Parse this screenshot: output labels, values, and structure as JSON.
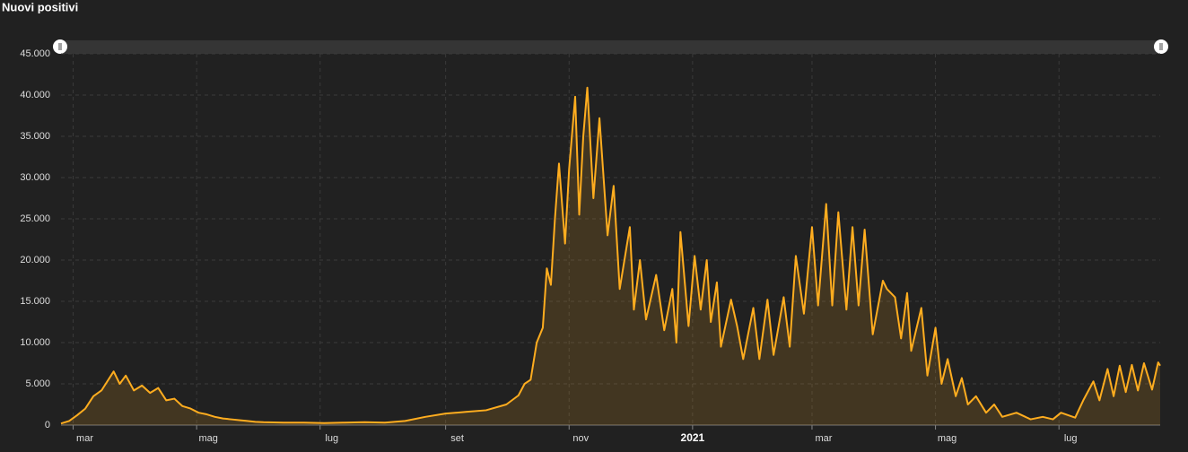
{
  "chart_data": {
    "type": "area",
    "title": "Nuovi positivi",
    "x": [
      0,
      4,
      8,
      12,
      16,
      20,
      26,
      29,
      32,
      36,
      40,
      44,
      48,
      52,
      56,
      60,
      64,
      68,
      72,
      76,
      80,
      84,
      88,
      92,
      96,
      100,
      110,
      120,
      130,
      140,
      150,
      160,
      170,
      180,
      190,
      200,
      210,
      220,
      226,
      229,
      232,
      235,
      238,
      240,
      242,
      244,
      246,
      249,
      251,
      254,
      256,
      258,
      260,
      263,
      266,
      270,
      273,
      276,
      281,
      283,
      286,
      289,
      294,
      298,
      302,
      304,
      306,
      310,
      313,
      316,
      319,
      321,
      324,
      326,
      331,
      334,
      337,
      342,
      345,
      349,
      352,
      357,
      360,
      363,
      367,
      371,
      374,
      378,
      381,
      384,
      388,
      391,
      394,
      397,
      401,
      406,
      408,
      412,
      415,
      418,
      420,
      425,
      428,
      432,
      435,
      438,
      442,
      445,
      448,
      452,
      457,
      461,
      465,
      472,
      479,
      485,
      490,
      494,
      501,
      505,
      510,
      513,
      517,
      520,
      523,
      526,
      529,
      532,
      535,
      539,
      542,
      543
    ],
    "values": [
      200,
      500,
      1200,
      2000,
      3500,
      4200,
      6500,
      5000,
      6000,
      4200,
      4800,
      3900,
      4500,
      3000,
      3200,
      2300,
      2000,
      1500,
      1300,
      1000,
      800,
      700,
      600,
      500,
      400,
      350,
      300,
      300,
      250,
      300,
      350,
      300,
      500,
      1000,
      1400,
      1600,
      1800,
      2500,
      3600,
      5000,
      5500,
      10000,
      11800,
      19000,
      17000,
      25000,
      31700,
      22000,
      31000,
      39800,
      25500,
      35000,
      40900,
      27500,
      37200,
      23000,
      29000,
      16500,
      24000,
      14000,
      20000,
      12800,
      18200,
      11500,
      16500,
      10000,
      23400,
      12000,
      20500,
      14000,
      20000,
      12500,
      17300,
      9500,
      15200,
      12000,
      8000,
      14200,
      8000,
      15200,
      8500,
      15500,
      9500,
      20500,
      13500,
      24000,
      14500,
      26800,
      14500,
      25800,
      14000,
      24000,
      14500,
      23700,
      11000,
      17500,
      16500,
      15500,
      10500,
      16000,
      9000,
      14200,
      6000,
      11800,
      5000,
      8000,
      3500,
      5700,
      2500,
      3500,
      1500,
      2500,
      1000,
      1500,
      700,
      1000,
      700,
      1500,
      900,
      3000,
      5300,
      3000,
      6800,
      3500,
      7200,
      4000,
      7300,
      4200,
      7500,
      4300,
      7600,
      7200
    ],
    "color": "#ffad1f",
    "xlim": [
      0,
      543
    ],
    "xticks": [
      {
        "value": 6,
        "label": "mar"
      },
      {
        "value": 67,
        "label": "mag"
      },
      {
        "value": 128,
        "label": "lug"
      },
      {
        "value": 190,
        "label": "set"
      },
      {
        "value": 251,
        "label": "nov"
      },
      {
        "value": 312,
        "label": "2021"
      },
      {
        "value": 371,
        "label": "mar"
      },
      {
        "value": 432,
        "label": "mag"
      },
      {
        "value": 493,
        "label": "lug"
      }
    ],
    "ylim": [
      0,
      45000
    ],
    "yticks": [
      0,
      {
        "value": 5000,
        "label": "5.000"
      },
      {
        "value": 10000,
        "label": "10.000"
      },
      {
        "value": 15000,
        "label": "15.000"
      },
      {
        "value": 20000,
        "label": "20.000"
      },
      {
        "value": 25000,
        "label": "25.000"
      },
      {
        "value": 30000,
        "label": "30.000"
      },
      {
        "value": 35000,
        "label": "35.000"
      },
      {
        "value": 40000,
        "label": "40.000"
      },
      {
        "value": 45000,
        "label": "45.000"
      }
    ],
    "grid": true
  }
}
